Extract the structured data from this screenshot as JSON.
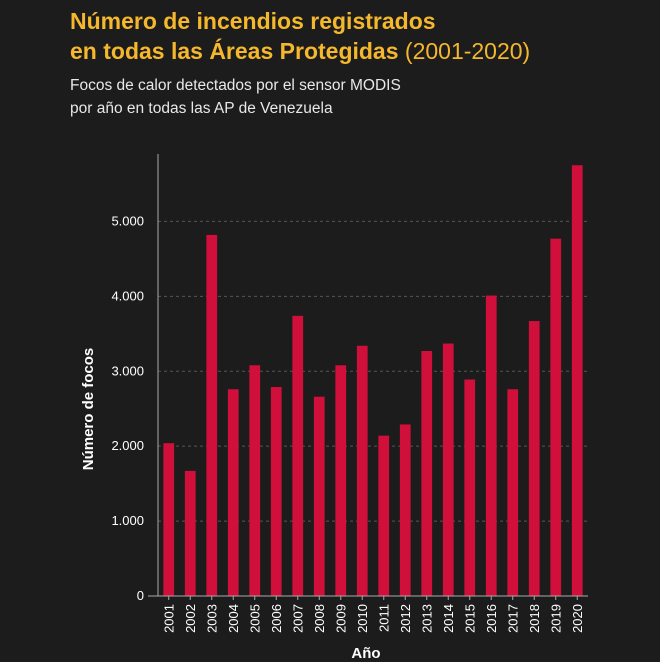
{
  "header": {
    "title_line1": "Número de incendios registrados",
    "title_line2_bold": "en todas las Áreas Protegidas",
    "title_line2_light": "(2001-2020)",
    "subtitle_line1": "Focos de calor detectados por el sensor MODIS",
    "subtitle_line2": "por año en todas las AP de Venezuela"
  },
  "colors": {
    "background": "#1c1c1c",
    "title": "#f5b72c",
    "bar": "#d0103a",
    "gridline": "#555555",
    "axis": "#aaaaaa",
    "text": "#ffffff"
  },
  "chart_data": {
    "type": "bar",
    "title": "Número de incendios registrados en todas las Áreas Protegidas (2001-2020)",
    "subtitle": "Focos de calor detectados por el sensor MODIS por año en todas las AP de Venezuela",
    "xlabel": "Año",
    "ylabel": "Número de focos",
    "categories": [
      "2001",
      "2002",
      "2003",
      "2004",
      "2005",
      "2006",
      "2007",
      "2008",
      "2009",
      "2010",
      "2011",
      "2012",
      "2013",
      "2014",
      "2015",
      "2016",
      "2017",
      "2018",
      "2019",
      "2020"
    ],
    "values": [
      2040,
      1670,
      4820,
      2760,
      3080,
      2790,
      3740,
      2660,
      3080,
      3340,
      2140,
      2290,
      3270,
      3370,
      2890,
      4010,
      2760,
      3670,
      4770,
      5750
    ],
    "ylim": [
      0,
      5900
    ],
    "yticks": [
      0,
      1000,
      2000,
      3000,
      4000,
      5000
    ],
    "ytick_labels": [
      "0",
      "1.000",
      "2.000",
      "3.000",
      "4.000",
      "5.000"
    ],
    "grid": true
  }
}
